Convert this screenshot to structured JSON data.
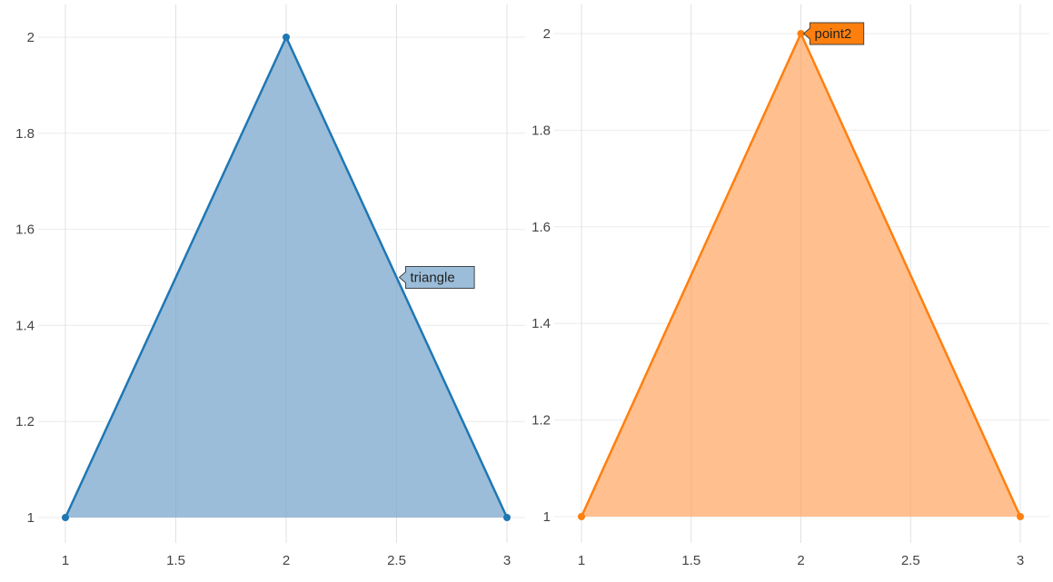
{
  "chart_data": [
    {
      "type": "area",
      "x": [
        1,
        2,
        3
      ],
      "y": [
        1,
        2,
        1
      ],
      "fill": "toself",
      "color": "#1f77b4",
      "fill_color": "#9bbdd9",
      "xlim": [
        1,
        3
      ],
      "ylim": [
        1,
        2
      ],
      "x_ticks": [
        1,
        1.5,
        2,
        2.5,
        3
      ],
      "x_tick_labels": [
        "1",
        "1.5",
        "2",
        "2.5",
        "3"
      ],
      "y_ticks": [
        1,
        1.2,
        1.4,
        1.6,
        1.8,
        2
      ],
      "y_tick_labels": [
        "1",
        "1.2",
        "1.4",
        "1.6",
        "1.8",
        "2"
      ],
      "grid": true,
      "hover_label": {
        "text": "triangle",
        "at": [
          2.5,
          1.5
        ]
      }
    },
    {
      "type": "area",
      "x": [
        1,
        2,
        3
      ],
      "y": [
        1,
        2,
        1
      ],
      "fill": "toself",
      "color": "#ff7f0e",
      "fill_color": "#ffbf8e",
      "xlim": [
        1,
        3
      ],
      "ylim": [
        1,
        2
      ],
      "x_ticks": [
        1,
        1.5,
        2,
        2.5,
        3
      ],
      "x_tick_labels": [
        "1",
        "1.5",
        "2",
        "2.5",
        "3"
      ],
      "y_ticks": [
        1,
        1.2,
        1.4,
        1.6,
        1.8,
        2
      ],
      "y_tick_labels": [
        "1",
        "1.2",
        "1.4",
        "1.6",
        "1.8",
        "2"
      ],
      "grid": true,
      "hover_label": {
        "text": "point2",
        "at": [
          2,
          2
        ]
      }
    }
  ]
}
